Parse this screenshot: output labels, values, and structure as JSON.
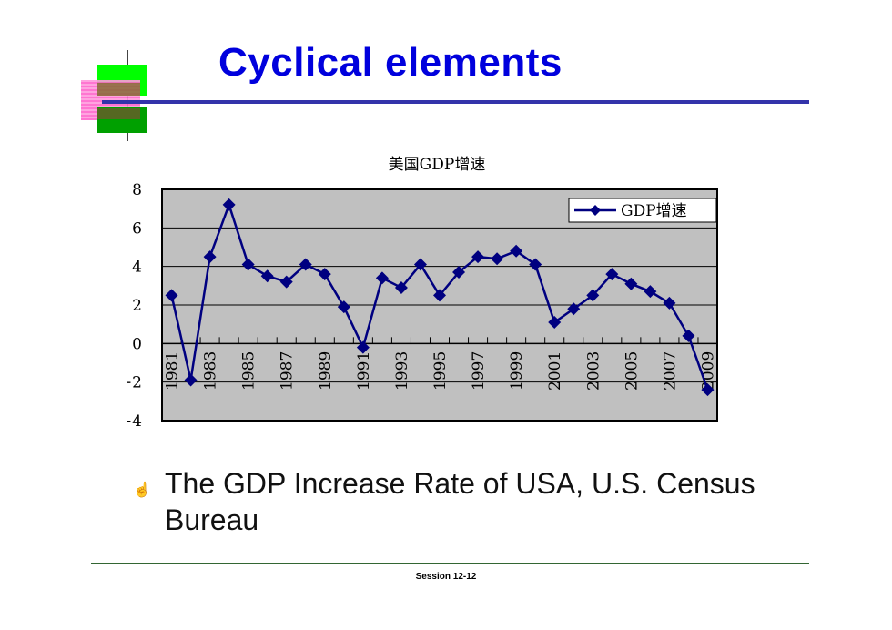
{
  "slide": {
    "title": "Cyclical elements",
    "caption": "The GDP Increase Rate of USA, U.S. Census Bureau",
    "bullet_icon": "pointing-hand-icon",
    "footer": "Session 12-12"
  },
  "colors": {
    "title": "#0000dd",
    "series": "#000080",
    "plot_background": "#c0c0c0"
  },
  "chart_data": {
    "type": "line",
    "title": "美国GDP增速",
    "legend_position": "top-right",
    "grid": true,
    "ylim": [
      -4,
      8
    ],
    "yticks": [
      -4,
      -2,
      0,
      2,
      4,
      6,
      8
    ],
    "x": [
      1981,
      1982,
      1983,
      1984,
      1985,
      1986,
      1987,
      1988,
      1989,
      1990,
      1991,
      1992,
      1993,
      1994,
      1995,
      1996,
      1997,
      1998,
      1999,
      2000,
      2001,
      2002,
      2003,
      2004,
      2005,
      2006,
      2007,
      2008,
      2009
    ],
    "xtick_labels": [
      "1981",
      "1983",
      "1985",
      "1987",
      "1989",
      "1991",
      "1993",
      "1995",
      "1997",
      "1999",
      "2001",
      "2003",
      "2005",
      "2007",
      "2009"
    ],
    "series": [
      {
        "name": "GDP增速",
        "values": [
          2.5,
          -1.9,
          4.5,
          7.2,
          4.1,
          3.5,
          3.2,
          4.1,
          3.6,
          1.9,
          -0.2,
          3.4,
          2.9,
          4.1,
          2.5,
          3.7,
          4.5,
          4.4,
          4.8,
          4.1,
          1.1,
          1.8,
          2.5,
          3.6,
          3.1,
          2.7,
          2.1,
          0.4,
          -2.4
        ]
      }
    ]
  }
}
